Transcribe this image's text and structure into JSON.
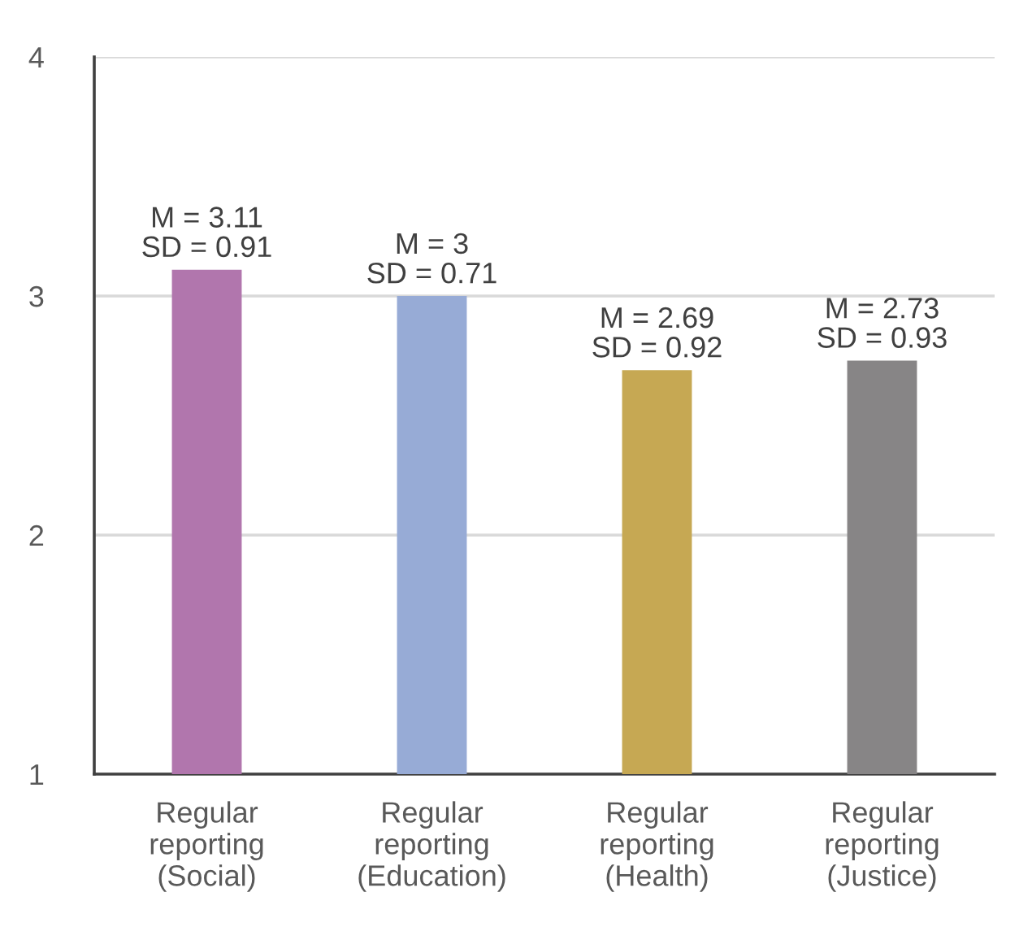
{
  "chart_data": {
    "type": "bar",
    "categories": [
      "Regular\nreporting\n(Social)",
      "Regular\nreporting\n(Education)",
      "Regular\nreporting\n(Health)",
      "Regular\nreporting\n(Justice)"
    ],
    "values": [
      3.11,
      3,
      2.69,
      2.73
    ],
    "colors": [
      "#b176ad",
      "#97abd6",
      "#c6a853",
      "#878586"
    ],
    "value_labels": [
      "M = 3.11\nSD = 0.91",
      "M = 3\nSD = 0.71",
      "M = 2.69\nSD = 0.92",
      "M = 2.73\nSD = 0.93"
    ],
    "ylim": [
      1,
      4
    ],
    "yticks": [
      1,
      2,
      3,
      4
    ],
    "grid": "y"
  }
}
